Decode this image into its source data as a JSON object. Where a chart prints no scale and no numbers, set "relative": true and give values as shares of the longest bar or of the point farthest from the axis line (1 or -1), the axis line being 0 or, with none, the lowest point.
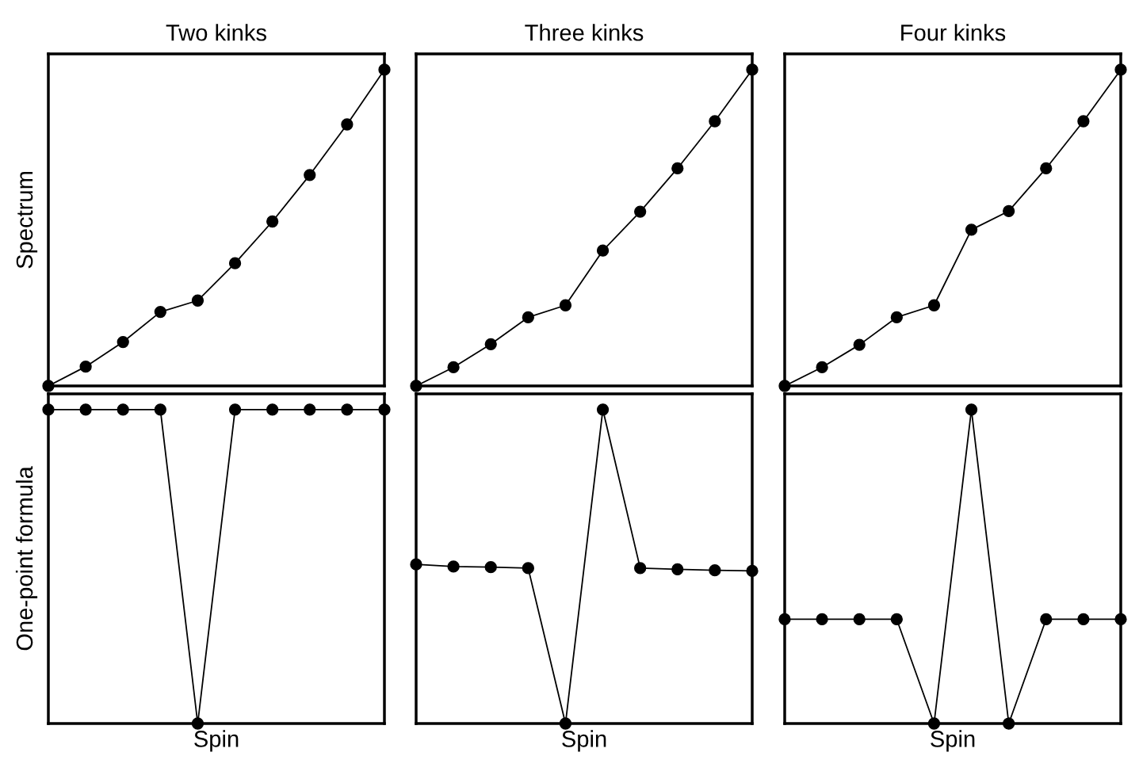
{
  "chart_data": [
    {
      "type": "line",
      "title": "Two kinks",
      "ylabel": "Spectrum",
      "relative": true,
      "tick_labels": false,
      "marker": "circle",
      "line_style": "solid",
      "categories": [
        null,
        null,
        null,
        null,
        null,
        null,
        null,
        null,
        null,
        null
      ],
      "series": [
        {
          "color": "#000000",
          "values": [
            0,
            0.061,
            0.139,
            0.234,
            0.27,
            0.388,
            0.52,
            0.667,
            0.827,
            1
          ]
        }
      ]
    },
    {
      "type": "line",
      "title": "Three kinks",
      "relative": true,
      "tick_labels": false,
      "marker": "circle",
      "line_style": "solid",
      "categories": [
        null,
        null,
        null,
        null,
        null,
        null,
        null,
        null,
        null,
        null
      ],
      "series": [
        {
          "color": "#000000",
          "values": [
            0,
            0.059,
            0.132,
            0.217,
            0.255,
            0.428,
            0.551,
            0.688,
            0.837,
            1
          ]
        }
      ]
    },
    {
      "type": "line",
      "title": "Four kinks",
      "relative": true,
      "tick_labels": false,
      "marker": "circle",
      "line_style": "solid",
      "categories": [
        null,
        null,
        null,
        null,
        null,
        null,
        null,
        null,
        null,
        null
      ],
      "series": [
        {
          "color": "#000000",
          "values": [
            0,
            0.059,
            0.13,
            0.217,
            0.255,
            0.494,
            0.553,
            0.688,
            0.837,
            1
          ]
        }
      ]
    },
    {
      "type": "line",
      "xlabel": "Spin",
      "ylabel": "One-point formula",
      "relative": true,
      "tick_labels": false,
      "marker": "circle",
      "line_style": "solid",
      "categories": [
        null,
        null,
        null,
        null,
        null,
        null,
        null,
        null,
        null,
        null
      ],
      "series": [
        {
          "color": "#000000",
          "values": [
            1,
            1,
            1,
            1,
            0,
            1,
            1,
            1,
            1,
            1
          ]
        }
      ]
    },
    {
      "type": "line",
      "xlabel": "Spin",
      "relative": true,
      "tick_labels": false,
      "marker": "circle",
      "line_style": "solid",
      "categories": [
        null,
        null,
        null,
        null,
        null,
        null,
        null,
        null,
        null,
        null
      ],
      "series": [
        {
          "color": "#000000",
          "values": [
            0.507,
            0.5,
            0.498,
            0.495,
            0,
            1,
            0.495,
            0.491,
            0.488,
            0.486
          ]
        }
      ]
    },
    {
      "type": "line",
      "xlabel": "Spin",
      "relative": true,
      "tick_labels": false,
      "marker": "circle",
      "line_style": "solid",
      "categories": [
        null,
        null,
        null,
        null,
        null,
        null,
        null,
        null,
        null,
        null
      ],
      "series": [
        {
          "color": "#000000",
          "values": [
            0.332,
            0.332,
            0.332,
            0.332,
            0,
            1,
            0,
            0.332,
            0.332,
            0.332
          ]
        }
      ]
    }
  ]
}
